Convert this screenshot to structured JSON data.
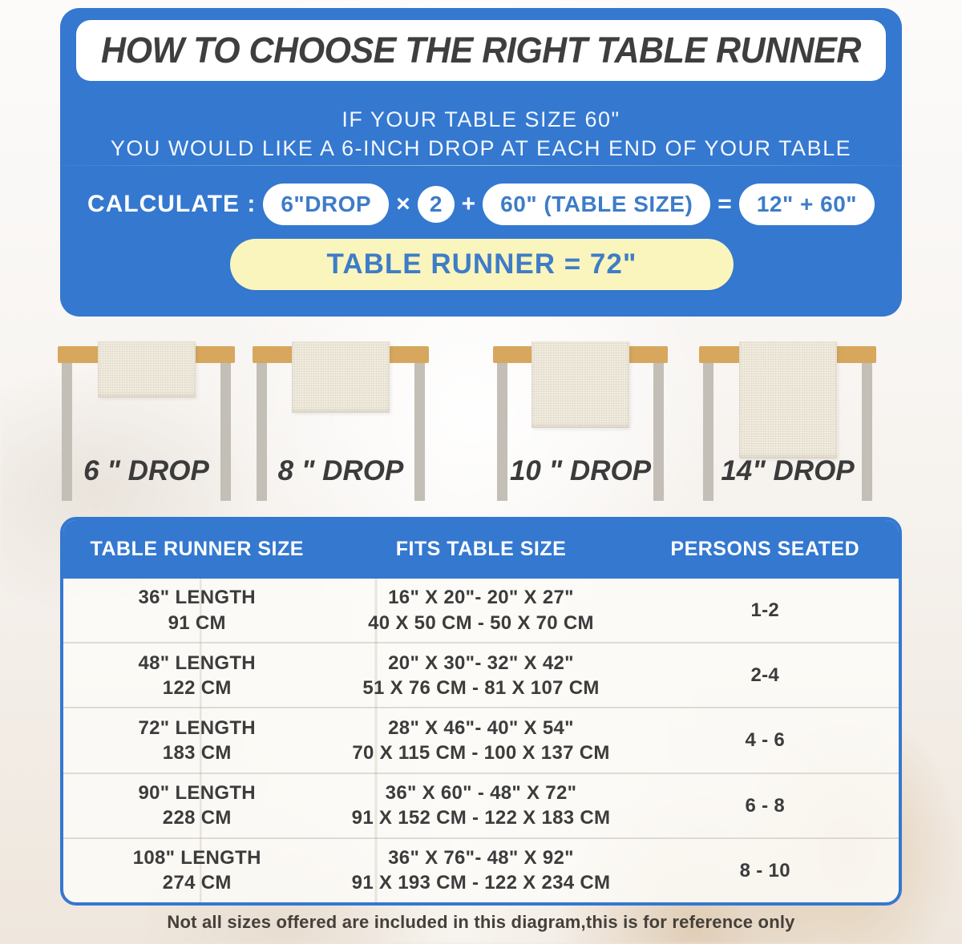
{
  "colors": {
    "panel_blue": "#3478D0",
    "pill_text_blue": "#3E7CC8",
    "result_banner_yellow": "#F9F5BD",
    "tabletop_wood": "#D7A75E",
    "table_leg_gray": "#C3BEB6",
    "runner_cloth_cream": "#F1ECDF",
    "dark_text": "#3B3B3B"
  },
  "header": {
    "title": "HOW TO CHOOSE THE RIGHT TABLE RUNNER",
    "subtitle_line1": "IF YOUR TABLE SIZE 60\"",
    "subtitle_line2": "YOU WOULD LIKE A 6-INCH DROP AT EACH END OF YOUR TABLE",
    "calculate_label": "CALCULATE :",
    "formula": {
      "drop_value": "6\"DROP",
      "times_sign": "×",
      "multiplier": "2",
      "plus_sign": "+",
      "table_size_value": "60\" (TABLE SIZE)",
      "equals_sign": "=",
      "sum_value": "12\" + 60\""
    },
    "result_banner": "TABLE RUNNER = 72\""
  },
  "drop_figures": [
    {
      "label": "6 \" DROP",
      "drop_inches": 6
    },
    {
      "label": "8 \" DROP",
      "drop_inches": 8
    },
    {
      "label": "10 \" DROP",
      "drop_inches": 10
    },
    {
      "label": "14\" DROP",
      "drop_inches": 14
    }
  ],
  "size_table": {
    "columns": [
      "TABLE RUNNER SIZE",
      "FITS TABLE SIZE",
      "PERSONS SEATED"
    ],
    "rows": [
      {
        "runner_size": [
          "36\" LENGTH",
          "91 CM"
        ],
        "fits": [
          "16\" X 20\"- 20\" X 27\"",
          "40 X 50 CM - 50 X 70 CM"
        ],
        "persons": "1-2"
      },
      {
        "runner_size": [
          "48\" LENGTH",
          "122 CM"
        ],
        "fits": [
          "20\" X 30\"- 32\" X 42\"",
          "51 X 76 CM - 81 X 107 CM"
        ],
        "persons": "2-4"
      },
      {
        "runner_size": [
          "72\" LENGTH",
          "183 CM"
        ],
        "fits": [
          "28\" X 46\"- 40\" X 54\"",
          "70 X 115 CM - 100 X 137 CM"
        ],
        "persons": "4 - 6"
      },
      {
        "runner_size": [
          "90\" LENGTH",
          "228 CM"
        ],
        "fits": [
          "36\" X 60\" - 48\" X 72\"",
          "91 X 152 CM - 122 X 183 CM"
        ],
        "persons": "6 - 8"
      },
      {
        "runner_size": [
          "108\" LENGTH",
          "274 CM"
        ],
        "fits": [
          "36\" X 76\"- 48\" X 92\"",
          "91 X 193 CM - 122 X 234 CM"
        ],
        "persons": "8 - 10"
      }
    ]
  },
  "footer_note": "Not all sizes offered are included in this diagram,this is for reference only"
}
